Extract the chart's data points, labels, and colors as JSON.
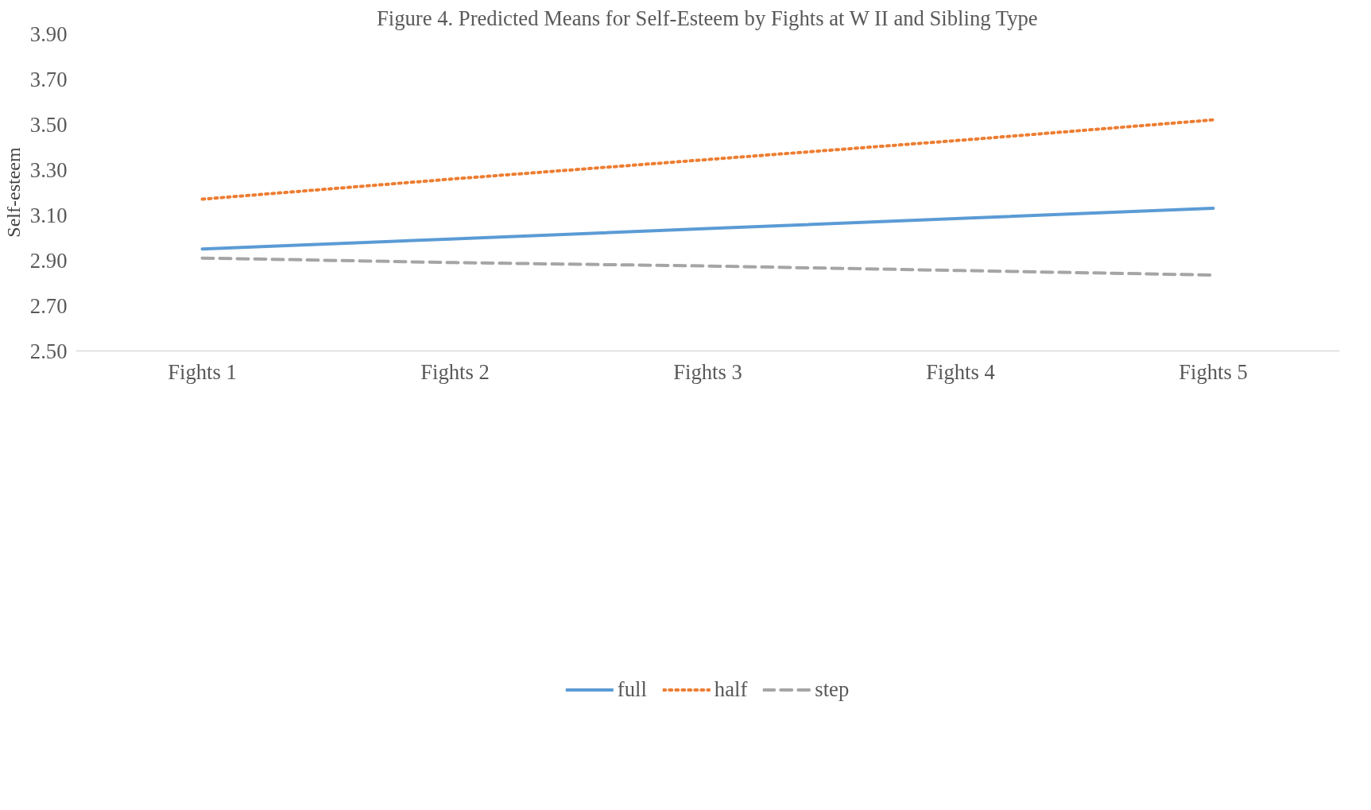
{
  "chart_data": {
    "type": "line",
    "title": "Figure 4. Predicted Means for Self-Esteem by Fights at W II and Sibling Type",
    "ylabel": "Self-esteem",
    "categories": [
      "Fights 1",
      "Fights 2",
      "Fights 3",
      "Fights 4",
      "Fights 5"
    ],
    "series": [
      {
        "name": "full",
        "color": "#5b9bd5",
        "line_style": "solid",
        "values": [
          2.95,
          2.995,
          3.04,
          3.085,
          3.13
        ]
      },
      {
        "name": "half",
        "color": "#ed7d31",
        "line_style": "dotted",
        "values": [
          3.17,
          3.26,
          3.345,
          3.43,
          3.52
        ]
      },
      {
        "name": "step",
        "color": "#a5a5a5",
        "line_style": "dashed",
        "values": [
          2.91,
          2.89,
          2.875,
          2.855,
          2.835
        ]
      }
    ],
    "ylim": [
      2.5,
      3.9
    ],
    "yticks": [
      {
        "value": 2.5,
        "label": "2.50"
      },
      {
        "value": 2.7,
        "label": "2.70"
      },
      {
        "value": 2.9,
        "label": "2.90"
      },
      {
        "value": 3.1,
        "label": "3.10"
      },
      {
        "value": 3.3,
        "label": "3.30"
      },
      {
        "value": 3.5,
        "label": "3.50"
      },
      {
        "value": 3.7,
        "label": "3.70"
      },
      {
        "value": 3.9,
        "label": "3.90"
      }
    ],
    "grid": false,
    "legend": "bottom",
    "marker": "none"
  }
}
